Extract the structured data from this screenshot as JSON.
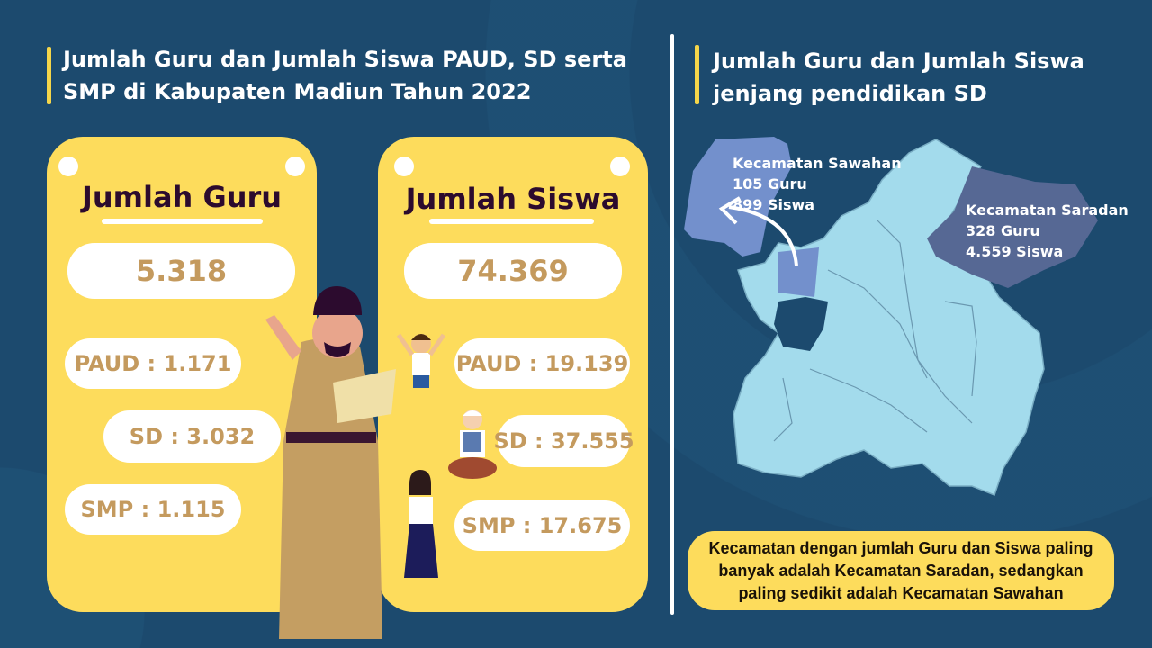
{
  "left_section": {
    "title_line1": "Jumlah Guru dan Jumlah Siswa PAUD, SD serta",
    "title_line2": "SMP di Kabupaten Madiun Tahun 2022"
  },
  "guru_card": {
    "heading": "Jumlah Guru",
    "total": "5.318",
    "paud": "PAUD : 1.171",
    "sd": "SD : 3.032",
    "smp": "SMP : 1.115"
  },
  "siswa_card": {
    "heading": "Jumlah Siswa",
    "total": "74.369",
    "paud": "PAUD : 19.139",
    "sd": "SD : 37.555",
    "smp": "SMP : 17.675"
  },
  "right_section": {
    "title_line1": "Jumlah Guru dan Jumlah Siswa",
    "title_line2": "jenjang pendidikan SD"
  },
  "map": {
    "sawahan": {
      "name": "Kecamatan Sawahan",
      "guru": "105 Guru",
      "siswa": "899 Siswa",
      "color": "#7390cc"
    },
    "saradan": {
      "name": "Kecamatan Saradan",
      "guru": "328 Guru",
      "siswa": "4.559 Siswa",
      "color": "#566894"
    },
    "base_color": "#a3dbec"
  },
  "summary": "Kecamatan dengan jumlah Guru dan Siswa paling banyak adalah Kecamatan Saradan, sedangkan paling sedikit adalah Kecamatan Sawahan",
  "colors": {
    "background": "#1c4a6e",
    "card": "#fddc5c",
    "value_text": "#c49a5e",
    "heading_text": "#2c0b2e"
  }
}
